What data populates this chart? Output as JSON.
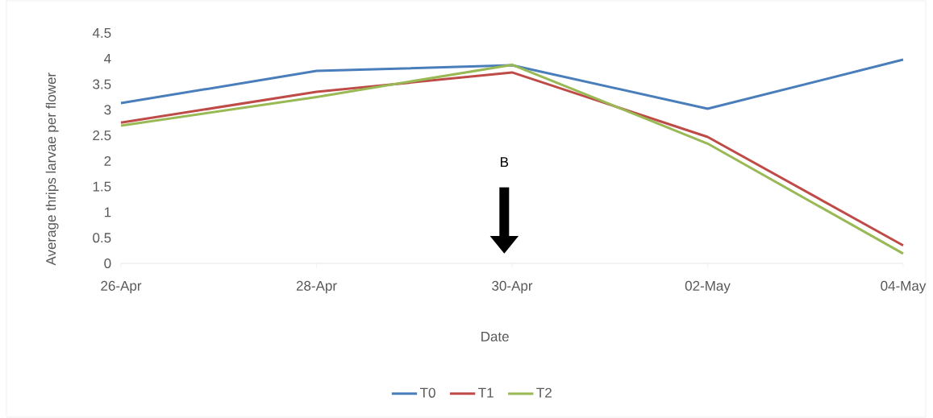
{
  "chart_data": {
    "type": "line",
    "xlabel": "Date",
    "ylabel": "Average thrips larvae per flower",
    "categories": [
      "26-Apr",
      "28-Apr",
      "30-Apr",
      "02-May",
      "04-May"
    ],
    "series": [
      {
        "name": "T0",
        "color": "#4a7ebb",
        "values": [
          3.13,
          3.76,
          3.87,
          3.02,
          3.98
        ]
      },
      {
        "name": "T1",
        "color": "#be4b48",
        "values": [
          2.75,
          3.35,
          3.73,
          2.47,
          0.35
        ]
      },
      {
        "name": "T2",
        "color": "#98b954",
        "values": [
          2.69,
          3.25,
          3.88,
          2.34,
          0.19
        ]
      }
    ],
    "ylim": [
      0,
      4.5
    ],
    "yticks": [
      0,
      0.5,
      1,
      1.5,
      2,
      2.5,
      3,
      3.5,
      4,
      4.5
    ],
    "annotations": [
      "B"
    ],
    "legend": "bottom",
    "marker": "none",
    "line_style": "solid"
  }
}
